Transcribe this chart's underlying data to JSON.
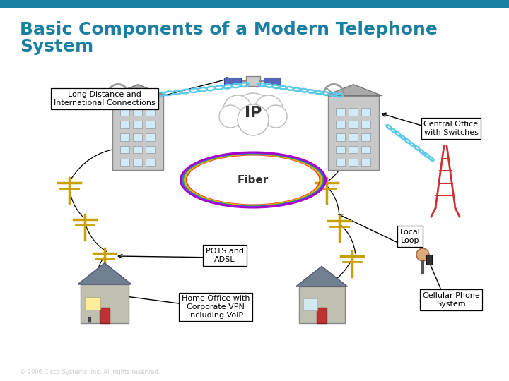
{
  "title_line1": "Basic Components of a Modern Telephone",
  "title_line2": "System",
  "title_color": "#1a7fa0",
  "title_fontsize": 18,
  "header_bar_color": "#1a7fa0",
  "header_bar_height": 0.022,
  "background_color": "#ffffff",
  "footer_text": "© 2006 Cisco Systems, Inc. All rights reserved.",
  "footer_color": "#cccccc",
  "labels": {
    "long_distance": "Long Distance and\nInternational Connections",
    "ip": "IP",
    "fiber": "Fiber",
    "central_office": "Central Office\nwith Switches",
    "local_loop": "Local\nLoop",
    "pots_adsl": "POTS and\nADSL",
    "home_office": "Home Office with\nCorporate VPN\nincluding VoIP",
    "cellular": "Cellular Phone\nSystem"
  },
  "chain_color": "#5bc8e8",
  "pole_color": "#c8a000",
  "fiber_colors": [
    "#ff3333",
    "#ff9900",
    "#cccc00",
    "#33aa33",
    "#3366ff",
    "#aa00cc"
  ]
}
